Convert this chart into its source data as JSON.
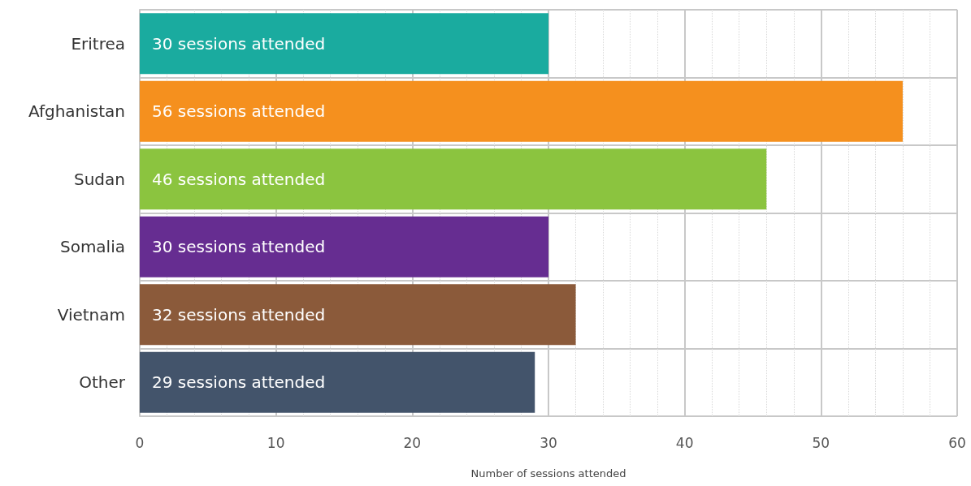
{
  "chart_data": {
    "type": "bar",
    "orientation": "horizontal",
    "categories": [
      "Eritrea",
      "Afghanistan",
      "Sudan",
      "Somalia",
      "Vietnam",
      "Other"
    ],
    "values": [
      30,
      56,
      46,
      30,
      32,
      29
    ],
    "colors": [
      "#1aab9f",
      "#f5901e",
      "#8bc43f",
      "#662d91",
      "#8b5a3a",
      "#43546b"
    ],
    "value_labels": [
      "30 sessions attended",
      "56 sessions attended",
      "46 sessions attended",
      "30 sessions attended",
      "32 sessions attended",
      "29 sessions attended"
    ],
    "xlabel": "Number of sessions attended",
    "xlim": [
      0,
      60
    ],
    "xticks": [
      0,
      10,
      20,
      30,
      40,
      50,
      60
    ],
    "grid": true
  }
}
